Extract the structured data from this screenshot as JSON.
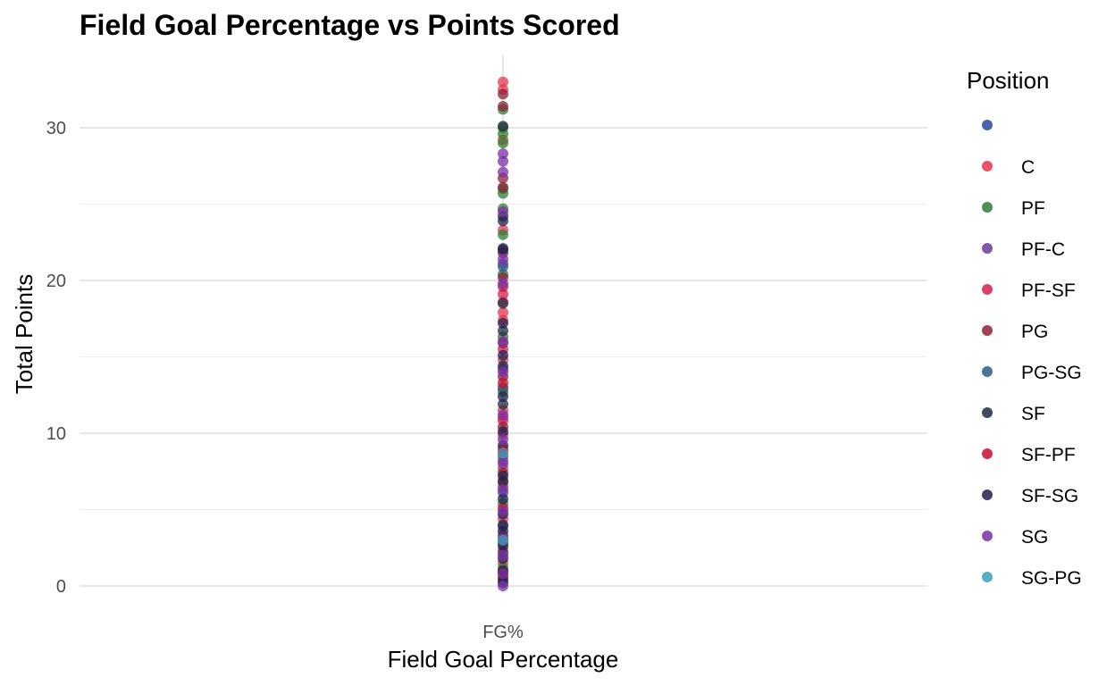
{
  "chart_data": {
    "type": "scatter",
    "title": "Field Goal Percentage vs Points Scored",
    "xlabel": "Field Goal Percentage",
    "ylabel": "Total Points",
    "categories": [
      "FG%"
    ],
    "ylim": [
      0,
      33
    ],
    "yticks": [
      0,
      10,
      20,
      30
    ],
    "grid": true,
    "legend": {
      "title": "Position",
      "placement": "right",
      "entries": [
        {
          "label": "",
          "color": "#2A4A9E"
        },
        {
          "label": "C",
          "color": "#E8344E"
        },
        {
          "label": "PF",
          "color": "#2E7D32"
        },
        {
          "label": "PF-C",
          "color": "#6A3D9A"
        },
        {
          "label": "PF-SF",
          "color": "#D61F4F"
        },
        {
          "label": "PG",
          "color": "#8E2137"
        },
        {
          "label": "PG-SG",
          "color": "#2B5C8A"
        },
        {
          "label": "SF",
          "color": "#1F2A44"
        },
        {
          "label": "SF-PF",
          "color": "#C8102E"
        },
        {
          "label": "SF-SG",
          "color": "#22204F"
        },
        {
          "label": "SG",
          "color": "#7B2FA8"
        },
        {
          "label": "SG-PG",
          "color": "#3AA0BF"
        }
      ]
    },
    "series": [
      {
        "name": "C",
        "values": [
          33.0,
          32.5,
          29.2,
          23.3,
          18.6,
          17.9,
          17.4,
          14.8,
          12.9,
          11.5,
          10.8,
          9.9,
          9.0,
          7.7,
          6.5,
          4.4,
          1.5
        ]
      },
      {
        "name": "PF",
        "values": [
          31.2,
          30.0,
          29.6,
          29.0,
          26.0,
          25.7,
          24.7,
          23.0,
          20.4,
          16.3,
          12.7,
          8.5,
          5.4,
          2.9,
          1.2
        ]
      },
      {
        "name": "PF-C",
        "values": [
          21.1,
          14.2,
          8.0,
          3.9
        ]
      },
      {
        "name": "PF-SF",
        "values": [
          19.1,
          15.5,
          11.0,
          6.9,
          2.5
        ]
      },
      {
        "name": "PG",
        "values": [
          32.2,
          31.4,
          26.7,
          26.1,
          21.8,
          20.2,
          15.9,
          13.7,
          10.4,
          7.4,
          3.3,
          0.6
        ]
      },
      {
        "name": "PG-SG",
        "values": [
          20.9,
          13.0,
          6.1
        ]
      },
      {
        "name": "SF",
        "values": [
          30.1,
          24.2,
          22.0,
          18.5,
          16.7,
          14.4,
          11.9,
          9.2,
          6.8,
          4.0,
          2.2,
          0.4
        ]
      },
      {
        "name": "SF-PF",
        "values": [
          19.6,
          13.3,
          8.8,
          5.1,
          0.9
        ]
      },
      {
        "name": "SF-SG",
        "values": [
          23.9,
          22.1,
          17.2,
          15.1,
          12.4,
          10.1,
          7.2,
          5.7,
          4.7,
          3.6,
          2.7,
          1.8,
          1.0,
          0.2
        ]
      },
      {
        "name": "SG",
        "values": [
          28.3,
          27.8,
          27.1,
          24.5,
          21.4,
          19.8,
          16.0,
          14.0,
          11.2,
          9.6,
          8.2,
          6.3,
          4.9,
          3.1,
          2.0,
          0.8,
          0.0
        ]
      },
      {
        "name": "SG-PG",
        "values": [
          8.7,
          3.0
        ]
      }
    ]
  }
}
